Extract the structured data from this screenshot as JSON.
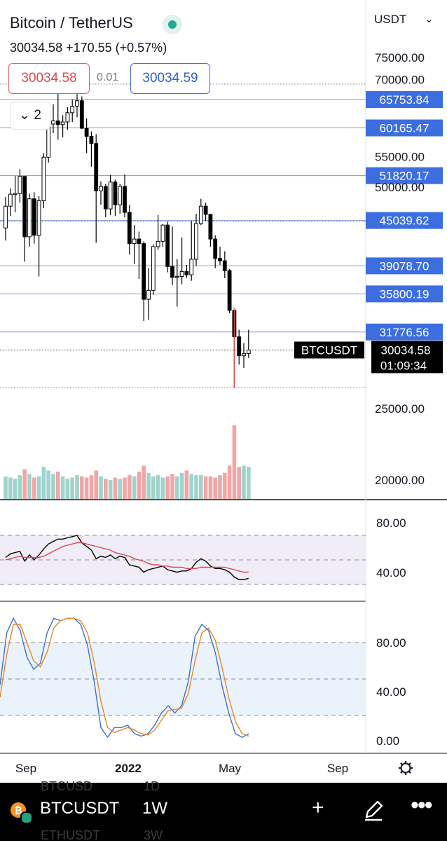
{
  "header": {
    "title": "Bitcoin / TetherUS",
    "price_line": "30034.58  +170.55 (+0.57%)",
    "sell_price": "30034.58",
    "spread": "0.01",
    "buy_price": "30034.59",
    "indicator_count": "2",
    "currency": "USDT"
  },
  "price_scale": {
    "ticks": [
      "75000.00",
      "70000.00",
      "55000.00",
      "50000.00",
      "25000.00",
      "20000.00"
    ],
    "level_labels": [
      "65753.84",
      "60165.47",
      "51820.17",
      "45039.62",
      "39078.70",
      "35800.19",
      "31776.56"
    ],
    "current_symbol": "BTCUSDT",
    "current_price": "30034.58",
    "countdown": "01:09:34"
  },
  "rsi_scale": {
    "ticks": [
      "80.00",
      "40.00"
    ]
  },
  "stoch_scale": {
    "ticks": [
      "80.00",
      "40.00",
      "0.00"
    ]
  },
  "time_axis": {
    "labels": [
      "Sep",
      "2022",
      "May",
      "Sep"
    ]
  },
  "bottom_bar": {
    "symbol": "BTCUSDT",
    "interval": "1W",
    "ghost_top": [
      "BTCUSD",
      "1D"
    ],
    "ghost_bottom": [
      "ETHUSDT",
      "3W"
    ]
  },
  "colors": {
    "up": "#ffffff",
    "down": "#000000",
    "vol_up": "#9fd3cc",
    "vol_down": "#f1a6a6",
    "level": "#7b98d9",
    "label_bg": "#3c6ee0",
    "rsi": "#000000",
    "rsi_ma": "#e0474c",
    "stoch_k": "#3d6fd6",
    "stoch_d": "#e8872a"
  },
  "chart_data": [
    {
      "type": "candlestick",
      "title": "Bitcoin / TetherUS",
      "interval": "1W",
      "ylim": [
        18000,
        78000
      ],
      "y_scale": "log",
      "ohlc": [
        [
          44000,
          48500,
          42300,
          47100
        ],
        [
          47100,
          49800,
          45700,
          48900
        ],
        [
          48900,
          51800,
          46200,
          49000
        ],
        [
          49000,
          52900,
          47600,
          51700
        ],
        [
          51700,
          51700,
          39600,
          42800
        ],
        [
          42800,
          49000,
          41500,
          48200
        ],
        [
          48200,
          49200,
          41900,
          43000
        ],
        [
          43000,
          48600,
          37800,
          47900
        ],
        [
          47900,
          55600,
          46800,
          54900
        ],
        [
          54900,
          61500,
          54000,
          60900
        ],
        [
          60900,
          64800,
          59200,
          61500
        ],
        [
          61500,
          67000,
          58000,
          60800
        ],
        [
          60800,
          62600,
          58400,
          61300
        ],
        [
          61300,
          64200,
          59800,
          63100
        ],
        [
          63100,
          65800,
          61300,
          64400
        ],
        [
          64400,
          69000,
          62200,
          65500
        ],
        [
          65500,
          66400,
          60000,
          60100
        ],
        [
          60100,
          62000,
          55600,
          58600
        ],
        [
          58600,
          59500,
          53300,
          57300
        ],
        [
          57300,
          59000,
          42000,
          49400
        ],
        [
          49400,
          50900,
          47300,
          50100
        ],
        [
          50100,
          50500,
          45500,
          46700
        ],
        [
          46700,
          51900,
          45800,
          50800
        ],
        [
          50800,
          51200,
          45700,
          47300
        ],
        [
          47300,
          50500,
          46000,
          50100
        ],
        [
          50100,
          52000,
          45500,
          46200
        ],
        [
          46200,
          47300,
          40500,
          41900
        ],
        [
          41900,
          44400,
          39300,
          42500
        ],
        [
          42500,
          43500,
          37500,
          41900
        ],
        [
          41900,
          42200,
          32900,
          35200
        ],
        [
          35200,
          38800,
          33000,
          36200
        ],
        [
          36200,
          41800,
          35700,
          41500
        ],
        [
          41500,
          45800,
          41100,
          42200
        ],
        [
          42200,
          44500,
          41500,
          44400
        ],
        [
          44400,
          44900,
          38300,
          39000
        ],
        [
          39000,
          44200,
          36800,
          37700
        ],
        [
          37700,
          39900,
          34400,
          37800
        ],
        [
          37800,
          42700,
          36900,
          38400
        ],
        [
          38400,
          39200,
          37600,
          38000
        ],
        [
          38000,
          45000,
          37300,
          39900
        ],
        [
          39900,
          46000,
          39100,
          44600
        ],
        [
          44600,
          48200,
          44400,
          47100
        ],
        [
          47100,
          47600,
          45000,
          45900
        ],
        [
          45900,
          46000,
          41500,
          42500
        ],
        [
          42500,
          43000,
          38800,
          40000
        ],
        [
          40000,
          41500,
          39200,
          39700
        ],
        [
          39700,
          40900,
          37600,
          38500
        ],
        [
          38500,
          38700,
          33700,
          34000
        ],
        [
          34000,
          34200,
          26700,
          31300
        ],
        [
          31300,
          32000,
          28700,
          29500
        ],
        [
          29500,
          30700,
          28400,
          29700
        ],
        [
          29700,
          32000,
          29300,
          30034
        ]
      ],
      "volume_up": [
        true,
        true,
        true,
        true,
        false,
        true,
        false,
        true,
        true,
        true,
        true,
        false,
        true,
        true,
        true,
        true,
        false,
        false,
        false,
        false,
        true,
        false,
        true,
        false,
        true,
        false,
        false,
        true,
        false,
        false,
        true,
        true,
        true,
        true,
        false,
        false,
        true,
        true,
        false,
        true,
        true,
        true,
        false,
        false,
        false,
        false,
        false,
        false,
        false,
        false,
        true,
        true
      ],
      "volume": [
        19,
        18,
        17,
        20,
        25,
        21,
        18,
        19,
        27,
        24,
        21,
        23,
        19,
        17,
        18,
        20,
        19,
        18,
        20,
        24,
        19,
        17,
        16,
        18,
        17,
        18,
        20,
        19,
        23,
        28,
        22,
        19,
        20,
        18,
        19,
        21,
        19,
        22,
        24,
        21,
        20,
        20,
        19,
        19,
        18,
        20,
        22,
        28,
        62,
        27,
        28,
        27
      ],
      "levels": [
        65753.84,
        60165.47,
        51820.17,
        45039.62,
        39078.7,
        35800.19,
        31776.56
      ],
      "dotted_levels": [
        69000,
        44900,
        26700
      ],
      "current_price": 30034.58
    },
    {
      "type": "line",
      "title": "RSI",
      "ylim": [
        25,
        90
      ],
      "bands": [
        70,
        50,
        30
      ],
      "series": [
        {
          "values": [
            52,
            55,
            56,
            57,
            49,
            54,
            50,
            54,
            59,
            63,
            65,
            67,
            67,
            68,
            69,
            70,
            64,
            61,
            58,
            51,
            53,
            52,
            54,
            51,
            53,
            52,
            46,
            45,
            44,
            40,
            42,
            43,
            44,
            45,
            42,
            41,
            40,
            41,
            41,
            43,
            48,
            51,
            49,
            45,
            43,
            43,
            42,
            40,
            36,
            34,
            34,
            35
          ]
        },
        {
          "values": [
            50,
            51,
            52,
            53,
            52,
            52,
            52,
            52,
            53,
            55,
            57,
            59,
            61,
            62,
            63,
            64,
            64,
            63,
            62,
            61,
            60,
            59,
            58,
            56,
            55,
            54,
            53,
            51,
            50,
            49,
            47,
            46,
            46,
            45,
            45,
            44,
            44,
            44,
            43,
            43,
            43,
            44,
            44,
            44,
            44,
            44,
            44,
            43,
            42,
            41,
            40,
            40
          ]
        }
      ]
    },
    {
      "type": "line",
      "title": "Stochastic RSI",
      "ylim": [
        -5,
        105
      ],
      "bands": [
        80,
        50,
        20
      ],
      "series": [
        {
          "values": [
            45,
            88,
            100,
            90,
            68,
            58,
            63,
            88,
            100,
            98,
            100,
            100,
            95,
            78,
            48,
            10,
            2,
            10,
            10,
            12,
            5,
            3,
            5,
            12,
            22,
            28,
            22,
            28,
            48,
            85,
            95,
            90,
            72,
            45,
            22,
            5,
            2,
            5
          ]
        },
        {
          "values": [
            35,
            70,
            95,
            95,
            80,
            65,
            60,
            72,
            92,
            98,
            100,
            100,
            98,
            88,
            64,
            32,
            10,
            6,
            8,
            10,
            8,
            5,
            4,
            8,
            16,
            24,
            25,
            26,
            38,
            65,
            88,
            92,
            82,
            60,
            35,
            15,
            5,
            3
          ]
        }
      ]
    }
  ]
}
